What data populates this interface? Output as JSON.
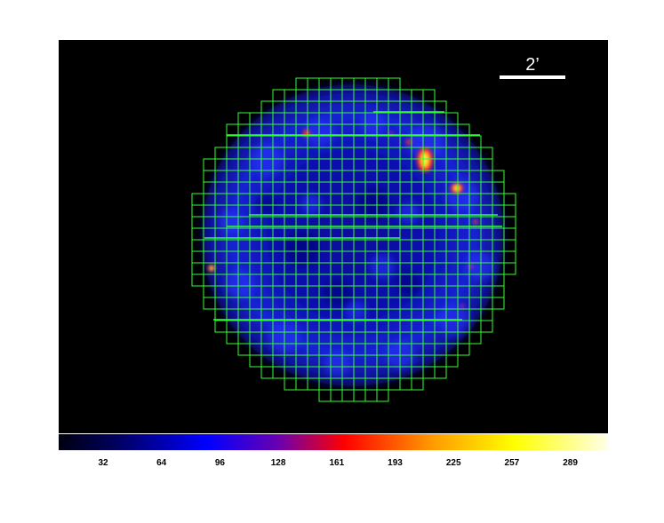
{
  "image": {
    "scale_bar_label": "2’",
    "colormap": [
      "#000010",
      "#0000ff",
      "#ff0000",
      "#ffff00",
      "#ffffe8"
    ],
    "background_color": "#000000",
    "grid_color": "#33ff33",
    "bright_color": "#ffee33",
    "hot_color": "#ff3322"
  },
  "colorbar": {
    "ticks": [
      "32",
      "64",
      "96",
      "128",
      "161",
      "193",
      "225",
      "257",
      "289"
    ]
  }
}
